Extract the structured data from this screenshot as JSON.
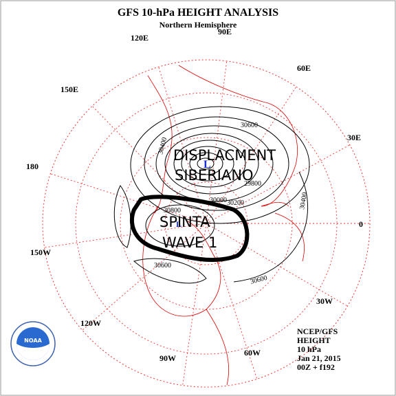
{
  "header": {
    "title": "GFS 10-hPa HEIGHT ANALYSIS",
    "subtitle": "Northern Hemisphere"
  },
  "longitude_labels": [
    "90E",
    "60E",
    "30E",
    "0",
    "30W",
    "60W",
    "90W",
    "120W",
    "150W",
    "180",
    "150E",
    "120E"
  ],
  "contour_labels": [
    "30600",
    "30400",
    "30400",
    "30200",
    "29800",
    "30800",
    "30600",
    "30600",
    "30000"
  ],
  "low_markers": [
    "L",
    "L"
  ],
  "annotations": {
    "displacement": [
      "DISPLACMENT",
      "SIBERIANO"
    ],
    "wave": [
      "SPINTA",
      "WAVE 1"
    ]
  },
  "info": [
    "NCEP/GFS",
    "HEIGHT",
    "10 hPa",
    "Jan 21, 2015",
    "00Z + f192"
  ],
  "logo": "NOAA"
}
